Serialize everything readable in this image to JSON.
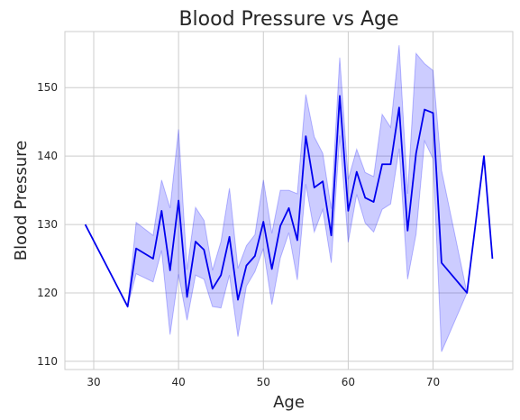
{
  "chart_data": {
    "type": "line",
    "title": "Blood Pressure vs Age",
    "xlabel": "Age",
    "ylabel": "Blood Pressure",
    "xlim": [
      26.6,
      79.4
    ],
    "ylim": [
      108.8,
      158.2
    ],
    "xticks": [
      30,
      40,
      50,
      60,
      70
    ],
    "yticks": [
      110,
      120,
      130,
      140,
      150
    ],
    "grid": true,
    "legend": "none",
    "colors": {
      "line": "#0000ee",
      "band": "#0000ff",
      "grid": "#cccccc",
      "spine": "#cccccc"
    },
    "series": [
      {
        "x": [
          29,
          34,
          35,
          37,
          38,
          39,
          40,
          41,
          42,
          43,
          44,
          45,
          46,
          47,
          48,
          49,
          50,
          51,
          52,
          53,
          54,
          55,
          56,
          57,
          58,
          59,
          60,
          61,
          62,
          63,
          64,
          65,
          66,
          67,
          68,
          69,
          70,
          71,
          74,
          76,
          77
        ],
        "y": [
          130,
          118,
          126.5,
          125,
          132,
          123.3,
          133.5,
          119.4,
          127.5,
          126.3,
          120.6,
          122.6,
          128.2,
          119,
          124,
          125.4,
          130.4,
          123.5,
          129.8,
          132.4,
          127.7,
          142.9,
          135.4,
          136.3,
          128.4,
          148.8,
          132,
          137.7,
          133.9,
          133.3,
          138.8,
          138.8,
          147.1,
          129.1,
          140.4,
          146.8,
          146.3,
          124.4,
          120,
          140,
          125
        ],
        "lower": [
          130,
          118,
          122.8,
          121.6,
          126.2,
          113.9,
          122.7,
          116,
          122.6,
          122,
          118,
          117.8,
          122.6,
          113.6,
          121,
          123.1,
          126.5,
          118.3,
          125.1,
          128.8,
          121.9,
          135.9,
          128.9,
          132.2,
          124.4,
          143,
          127.4,
          134.4,
          130.2,
          128.9,
          132.2,
          133,
          141.1,
          122,
          128.6,
          142.2,
          139.6,
          111.4,
          120,
          140,
          125
        ],
        "upper": [
          130,
          118,
          130.3,
          128.4,
          136.5,
          132.4,
          143.9,
          123.4,
          132.5,
          130.6,
          123.3,
          127.5,
          135.3,
          123.6,
          126.9,
          128.5,
          136.5,
          128.7,
          135,
          135,
          134.5,
          149,
          142.8,
          140.4,
          132.3,
          154.4,
          136.6,
          141,
          137.6,
          137,
          146.1,
          144.2,
          156.2,
          134.5,
          155,
          153.5,
          152.5,
          137.9,
          120,
          140,
          125
        ]
      }
    ]
  }
}
